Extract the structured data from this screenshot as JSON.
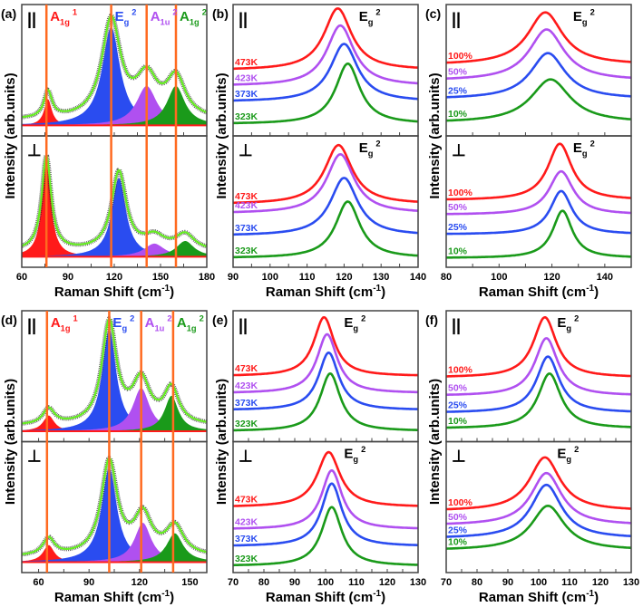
{
  "axis_labels": {
    "y": "Intensity (arb.units)",
    "x_main": "Raman Shift (cm",
    "x_sup": "-1",
    "x_close": ")"
  },
  "polarization_labels": {
    "parallel": "||",
    "perpendicular": "⊥"
  },
  "colors": {
    "red": "#ff1a1a",
    "purple": "#b050f0",
    "blue": "#2a4cf0",
    "green": "#1a9a1a",
    "marker_line": "#ff6a20",
    "fit": "#66ee22"
  },
  "chart_data": [
    {
      "panel": "(a)",
      "type": "area",
      "xlim": [
        60,
        180
      ],
      "xticks": [
        60,
        90,
        120,
        150,
        180
      ],
      "marker_lines": [
        76,
        118,
        141,
        160
      ],
      "peak_labels": [
        {
          "base": "A",
          "sub": "1g",
          "sup": "1",
          "color": "red"
        },
        {
          "base": "E",
          "sub": "g",
          "sup": "2",
          "color": "blue"
        },
        {
          "base": "A",
          "sub": "1u",
          "sup": "2",
          "color": "purple"
        },
        {
          "base": "A",
          "sub": "1g",
          "sup": "2",
          "color": "green"
        }
      ],
      "subplots": [
        {
          "polarization": "parallel",
          "peaks": [
            {
              "center": 77,
              "hwhm": 3,
              "amp": 0.2,
              "color": "red"
            },
            {
              "center": 118,
              "hwhm": 7,
              "amp": 0.75,
              "color": "blue"
            },
            {
              "center": 141,
              "hwhm": 8,
              "amp": 0.3,
              "color": "purple"
            },
            {
              "center": 160,
              "hwhm": 7,
              "amp": 0.3,
              "color": "green"
            }
          ]
        },
        {
          "polarization": "perpendicular",
          "peaks": [
            {
              "center": 76,
              "hwhm": 3.5,
              "amp": 0.72,
              "color": "red"
            },
            {
              "center": 123,
              "hwhm": 5.5,
              "amp": 0.6,
              "color": "blue"
            },
            {
              "center": 146,
              "hwhm": 8,
              "amp": 0.1,
              "color": "purple"
            },
            {
              "center": 166,
              "hwhm": 7,
              "amp": 0.12,
              "color": "green"
            }
          ]
        }
      ]
    },
    {
      "panel": "(b)",
      "type": "line",
      "xlim": [
        90,
        140
      ],
      "xticks": [
        90,
        100,
        110,
        120,
        130,
        140
      ],
      "peak_label": {
        "base": "E",
        "sub": "g",
        "sup": "2"
      },
      "label_at": 124,
      "subplots": [
        {
          "polarization": "parallel",
          "series": [
            {
              "name": "473K",
              "center": 118.3,
              "hwhm": 4.5,
              "base": 0.5,
              "peak": 0.97,
              "color": "red"
            },
            {
              "name": "423K",
              "center": 119,
              "hwhm": 4.5,
              "base": 0.38,
              "peak": 0.84,
              "color": "purple"
            },
            {
              "name": "373K",
              "center": 120,
              "hwhm": 4.5,
              "base": 0.26,
              "peak": 0.7,
              "color": "blue"
            },
            {
              "name": "323K",
              "center": 121,
              "hwhm": 4,
              "base": 0.09,
              "peak": 0.55,
              "color": "green"
            }
          ]
        },
        {
          "polarization": "perpendicular",
          "series": [
            {
              "name": "473K",
              "center": 118.5,
              "hwhm": 4.5,
              "base": 0.48,
              "peak": 0.93,
              "color": "red"
            },
            {
              "name": "423K",
              "center": 119,
              "hwhm": 4.5,
              "base": 0.41,
              "peak": 0.86,
              "color": "purple"
            },
            {
              "name": "373K",
              "center": 120,
              "hwhm": 4.5,
              "base": 0.24,
              "peak": 0.68,
              "color": "blue"
            },
            {
              "name": "323K",
              "center": 121,
              "hwhm": 4,
              "base": 0.07,
              "peak": 0.5,
              "color": "green"
            }
          ]
        }
      ]
    },
    {
      "panel": "(c)",
      "type": "line",
      "xlim": [
        80,
        150
      ],
      "xticks": [
        80,
        100,
        120,
        140
      ],
      "minor_step": 10,
      "peak_label": {
        "base": "E",
        "sub": "g",
        "sup": "2"
      },
      "label_at": 128,
      "subplots": [
        {
          "polarization": "parallel",
          "series": [
            {
              "name": "100%",
              "center": 117.5,
              "hwhm": 8,
              "base": 0.54,
              "peak": 0.94,
              "color": "red"
            },
            {
              "name": "50%",
              "center": 118,
              "hwhm": 8,
              "base": 0.42,
              "peak": 0.81,
              "color": "purple"
            },
            {
              "name": "25%",
              "center": 118.5,
              "hwhm": 8,
              "base": 0.28,
              "peak": 0.63,
              "color": "blue"
            },
            {
              "name": "10%",
              "center": 119.5,
              "hwhm": 9,
              "base": 0.1,
              "peak": 0.43,
              "color": "green"
            }
          ]
        },
        {
          "polarization": "perpendicular",
          "series": [
            {
              "name": "100%",
              "center": 123,
              "hwhm": 5.5,
              "base": 0.51,
              "peak": 0.94,
              "color": "red"
            },
            {
              "name": "50%",
              "center": 123.5,
              "hwhm": 5.5,
              "base": 0.4,
              "peak": 0.73,
              "color": "purple"
            },
            {
              "name": "25%",
              "center": 123.5,
              "hwhm": 5,
              "base": 0.25,
              "peak": 0.58,
              "color": "blue"
            },
            {
              "name": "10%",
              "center": 124,
              "hwhm": 4.5,
              "base": 0.07,
              "peak": 0.43,
              "color": "green"
            }
          ]
        }
      ]
    },
    {
      "panel": "(d)",
      "type": "area",
      "xlim": [
        50,
        160
      ],
      "xticks": [
        60,
        90,
        120,
        150
      ],
      "marker_lines": [
        65,
        102,
        121,
        140
      ],
      "peak_labels": [
        {
          "base": "A",
          "sub": "1g",
          "sup": "1",
          "color": "red"
        },
        {
          "base": "E",
          "sub": "g",
          "sup": "2",
          "color": "blue"
        },
        {
          "base": "A",
          "sub": "1u",
          "sup": "2",
          "color": "purple"
        },
        {
          "base": "A",
          "sub": "1g",
          "sup": "2",
          "color": "green"
        }
      ],
      "subplots": [
        {
          "polarization": "parallel",
          "peaks": [
            {
              "center": 66,
              "hwhm": 4,
              "amp": 0.12,
              "color": "red"
            },
            {
              "center": 102,
              "hwhm": 5,
              "amp": 0.78,
              "color": "blue"
            },
            {
              "center": 121,
              "hwhm": 6,
              "amp": 0.33,
              "color": "purple"
            },
            {
              "center": 139,
              "hwhm": 5,
              "amp": 0.27,
              "color": "green"
            }
          ]
        },
        {
          "polarization": "perpendicular",
          "peaks": [
            {
              "center": 66,
              "hwhm": 4,
              "amp": 0.13,
              "color": "red"
            },
            {
              "center": 102,
              "hwhm": 5.5,
              "amp": 0.72,
              "color": "blue"
            },
            {
              "center": 122,
              "hwhm": 6,
              "amp": 0.3,
              "color": "purple"
            },
            {
              "center": 141,
              "hwhm": 6,
              "amp": 0.22,
              "color": "green"
            }
          ]
        }
      ]
    },
    {
      "panel": "(e)",
      "type": "line",
      "xlim": [
        70,
        130
      ],
      "xticks": [
        70,
        80,
        90,
        100,
        110,
        120,
        130
      ],
      "peak_label": {
        "base": "E",
        "sub": "g",
        "sup": "2"
      },
      "label_at": 106,
      "subplots": [
        {
          "polarization": "parallel",
          "series": [
            {
              "name": "473K",
              "center": 99.5,
              "hwhm": 4,
              "base": 0.5,
              "peak": 0.95,
              "color": "red"
            },
            {
              "name": "423K",
              "center": 100.5,
              "hwhm": 4,
              "base": 0.37,
              "peak": 0.82,
              "color": "purple"
            },
            {
              "name": "373K",
              "center": 101,
              "hwhm": 4,
              "base": 0.24,
              "peak": 0.68,
              "color": "blue"
            },
            {
              "name": "323K",
              "center": 101.5,
              "hwhm": 4,
              "base": 0.08,
              "peak": 0.52,
              "color": "green"
            }
          ]
        },
        {
          "polarization": "perpendicular",
          "series": [
            {
              "name": "473K",
              "center": 101,
              "hwhm": 4.5,
              "base": 0.5,
              "peak": 0.92,
              "color": "red"
            },
            {
              "name": "423K",
              "center": 102,
              "hwhm": 4,
              "base": 0.33,
              "peak": 0.78,
              "color": "purple"
            },
            {
              "name": "373K",
              "center": 102,
              "hwhm": 4,
              "base": 0.2,
              "peak": 0.68,
              "color": "blue"
            },
            {
              "name": "323K",
              "center": 102,
              "hwhm": 4,
              "base": 0.05,
              "peak": 0.5,
              "color": "green"
            }
          ]
        }
      ]
    },
    {
      "panel": "(f)",
      "type": "line",
      "xlim": [
        70,
        130
      ],
      "xticks": [
        70,
        80,
        90,
        100,
        110,
        120,
        130
      ],
      "peak_label": {
        "base": "E",
        "sub": "g",
        "sup": "2"
      },
      "label_at": 106,
      "subplots": [
        {
          "polarization": "parallel",
          "series": [
            {
              "name": "100%",
              "center": 102,
              "hwhm": 4.5,
              "base": 0.49,
              "peak": 0.95,
              "color": "red"
            },
            {
              "name": "50%",
              "center": 102.5,
              "hwhm": 4.5,
              "base": 0.35,
              "peak": 0.79,
              "color": "purple"
            },
            {
              "name": "25%",
              "center": 103,
              "hwhm": 4.5,
              "base": 0.22,
              "peak": 0.65,
              "color": "blue"
            },
            {
              "name": "10%",
              "center": 103.5,
              "hwhm": 4.5,
              "base": 0.1,
              "peak": 0.52,
              "color": "green"
            }
          ]
        },
        {
          "polarization": "perpendicular",
          "series": [
            {
              "name": "100%",
              "center": 102,
              "hwhm": 6,
              "base": 0.47,
              "peak": 0.88,
              "color": "red"
            },
            {
              "name": "50%",
              "center": 102.5,
              "hwhm": 6,
              "base": 0.36,
              "peak": 0.76,
              "color": "purple"
            },
            {
              "name": "25%",
              "center": 102.5,
              "hwhm": 6,
              "base": 0.26,
              "peak": 0.67,
              "color": "blue"
            },
            {
              "name": "10%",
              "center": 103,
              "hwhm": 6.5,
              "base": 0.17,
              "peak": 0.51,
              "color": "green"
            }
          ]
        }
      ]
    }
  ]
}
